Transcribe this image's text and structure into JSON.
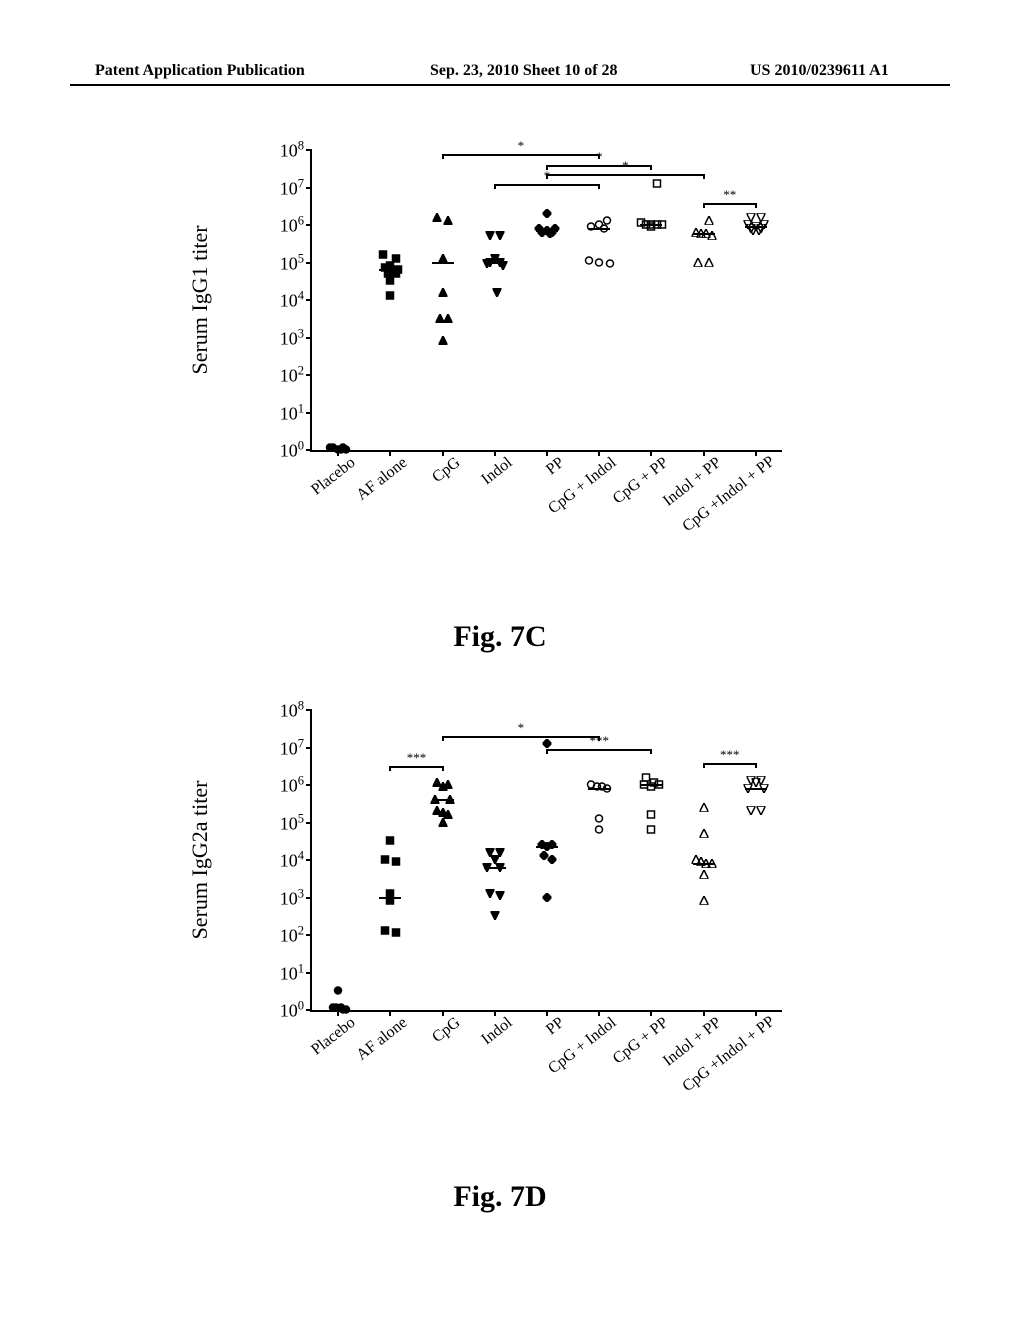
{
  "header": {
    "left": "Patent Application Publication",
    "center": "Sep. 23, 2010  Sheet 10 of 28",
    "right": "US 2010/0239611 A1"
  },
  "categories": [
    "Placebo",
    "AF alone",
    "CpG",
    "Indol",
    "PP",
    "CpG + Indol",
    "CpG + PP",
    "Indol + PP",
    "CpG +Indol + PP"
  ],
  "y_ticks": [
    0,
    1,
    2,
    3,
    4,
    5,
    6,
    7,
    8
  ],
  "marker_styles": [
    "filled-circle",
    "filled-square",
    "filled-triangle-up",
    "filled-triangle-down",
    "filled-diamond",
    "open-circle",
    "open-square",
    "open-triangle-up",
    "open-triangle-down"
  ],
  "colors": {
    "axis": "#000000",
    "bg": "#ffffff",
    "marker": "#000000"
  },
  "chart7C": {
    "caption": "Fig. 7C",
    "ylabel": "Serum IgG1 titer",
    "sig": [
      {
        "from": 2,
        "to": 5,
        "y": 7.9,
        "label": "*"
      },
      {
        "from": 4,
        "to": 6,
        "y": 7.6,
        "label": "*"
      },
      {
        "from": 4,
        "to": 7,
        "y": 7.35,
        "label": "*"
      },
      {
        "from": 3,
        "to": 5,
        "y": 7.1,
        "label": "*"
      },
      {
        "from": 7,
        "to": 8,
        "y": 6.6,
        "label": "**"
      }
    ],
    "data": [
      {
        "g": 0,
        "pts": [
          [
            0,
            0
          ],
          [
            0.1,
            0.05
          ],
          [
            -0.1,
            0.05
          ],
          [
            0.05,
            0
          ],
          [
            -0.15,
            0.05
          ],
          [
            0.15,
            0
          ]
        ]
      },
      {
        "g": 1,
        "pts": [
          [
            -0.15,
            5.2
          ],
          [
            0.1,
            5.1
          ],
          [
            0,
            4.9
          ],
          [
            -0.1,
            4.85
          ],
          [
            0.15,
            4.8
          ],
          [
            -0.05,
            4.7
          ],
          [
            0.1,
            4.7
          ],
          [
            0,
            4.5
          ],
          [
            0,
            4.1
          ]
        ],
        "median": 4.8
      },
      {
        "g": 2,
        "pts": [
          [
            -0.1,
            6.2
          ],
          [
            0.1,
            6.1
          ],
          [
            0,
            5.1
          ],
          [
            0,
            4.2
          ],
          [
            -0.05,
            3.5
          ],
          [
            0.1,
            3.5
          ],
          [
            0,
            2.9
          ]
        ],
        "median": 5.0
      },
      {
        "g": 3,
        "pts": [
          [
            -0.1,
            5.7
          ],
          [
            0.1,
            5.7
          ],
          [
            0,
            5.1
          ],
          [
            -0.1,
            5.0
          ],
          [
            0.1,
            5.0
          ],
          [
            -0.15,
            4.95
          ],
          [
            0.15,
            4.9
          ],
          [
            0.05,
            4.2
          ]
        ],
        "median": 5.0
      },
      {
        "g": 4,
        "pts": [
          [
            0,
            6.3
          ],
          [
            -0.15,
            5.9
          ],
          [
            0.15,
            5.9
          ],
          [
            0,
            5.85
          ],
          [
            -0.1,
            5.8
          ],
          [
            0.1,
            5.8
          ],
          [
            0.05,
            5.75
          ]
        ],
        "median": 5.85
      },
      {
        "g": 5,
        "pts": [
          [
            0.15,
            6.1
          ],
          [
            0,
            6.0
          ],
          [
            -0.15,
            5.95
          ],
          [
            0.1,
            5.9
          ],
          [
            -0.2,
            5.05
          ],
          [
            0,
            5.0
          ],
          [
            0.2,
            4.95
          ]
        ],
        "median": 5.9
      },
      {
        "g": 6,
        "pts": [
          [
            0.1,
            7.1
          ],
          [
            -0.2,
            6.05
          ],
          [
            -0.1,
            6.0
          ],
          [
            0,
            6.0
          ],
          [
            0.1,
            6.0
          ],
          [
            0.2,
            6.0
          ],
          [
            0,
            5.95
          ]
        ],
        "median": 6.0
      },
      {
        "g": 7,
        "pts": [
          [
            0.1,
            6.1
          ],
          [
            -0.15,
            5.8
          ],
          [
            -0.05,
            5.75
          ],
          [
            0.05,
            5.75
          ],
          [
            0.15,
            5.7
          ],
          [
            -0.1,
            5.0
          ],
          [
            0.1,
            5.0
          ]
        ],
        "median": 5.75
      },
      {
        "g": 8,
        "pts": [
          [
            -0.1,
            6.2
          ],
          [
            0.1,
            6.2
          ],
          [
            -0.15,
            6.0
          ],
          [
            0.15,
            6.0
          ],
          [
            0,
            5.95
          ],
          [
            -0.1,
            5.9
          ],
          [
            0.1,
            5.9
          ],
          [
            -0.05,
            5.85
          ],
          [
            0.05,
            5.85
          ]
        ],
        "median": 5.95
      }
    ]
  },
  "chart7D": {
    "caption": "Fig. 7D",
    "ylabel": "Serum IgG2a titer",
    "sig": [
      {
        "from": 2,
        "to": 5,
        "y": 7.3,
        "label": "*"
      },
      {
        "from": 4,
        "to": 6,
        "y": 6.95,
        "label": "***"
      },
      {
        "from": 1,
        "to": 2,
        "y": 6.5,
        "label": "***"
      },
      {
        "from": 7,
        "to": 8,
        "y": 6.6,
        "label": "***"
      }
    ],
    "data": [
      {
        "g": 0,
        "pts": [
          [
            0,
            0.5
          ],
          [
            0.05,
            0.05
          ],
          [
            -0.05,
            0.05
          ],
          [
            0.1,
            0
          ],
          [
            -0.1,
            0.05
          ],
          [
            0.15,
            0
          ]
        ]
      },
      {
        "g": 1,
        "pts": [
          [
            0,
            4.5
          ],
          [
            -0.1,
            4.0
          ],
          [
            0.1,
            3.95
          ],
          [
            0,
            3.1
          ],
          [
            0,
            2.9
          ],
          [
            -0.1,
            2.1
          ],
          [
            0.1,
            2.05
          ]
        ],
        "median": 3.0
      },
      {
        "g": 2,
        "pts": [
          [
            -0.1,
            6.05
          ],
          [
            0.1,
            6.0
          ],
          [
            0,
            5.95
          ],
          [
            -0.15,
            5.6
          ],
          [
            0.15,
            5.6
          ],
          [
            -0.1,
            5.3
          ],
          [
            0,
            5.25
          ],
          [
            0.1,
            5.2
          ],
          [
            0,
            5.0
          ]
        ],
        "median": 5.6
      },
      {
        "g": 3,
        "pts": [
          [
            -0.1,
            4.2
          ],
          [
            0.1,
            4.2
          ],
          [
            0,
            4.0
          ],
          [
            -0.15,
            3.8
          ],
          [
            0.1,
            3.8
          ],
          [
            -0.1,
            3.1
          ],
          [
            0.1,
            3.05
          ],
          [
            0,
            2.5
          ]
        ],
        "median": 3.8
      },
      {
        "g": 4,
        "pts": [
          [
            0,
            7.1
          ],
          [
            -0.1,
            4.4
          ],
          [
            0.1,
            4.4
          ],
          [
            0,
            4.35
          ],
          [
            -0.05,
            4.1
          ],
          [
            0.1,
            4.0
          ],
          [
            0,
            3.0
          ]
        ],
        "median": 4.35
      },
      {
        "g": 5,
        "pts": [
          [
            -0.15,
            6.0
          ],
          [
            -0.05,
            5.95
          ],
          [
            0.05,
            5.95
          ],
          [
            0.15,
            5.9
          ],
          [
            0,
            5.1
          ],
          [
            0,
            4.8
          ]
        ],
        "median": 5.9
      },
      {
        "g": 6,
        "pts": [
          [
            -0.1,
            6.2
          ],
          [
            0.05,
            6.05
          ],
          [
            -0.15,
            6.0
          ],
          [
            0.15,
            6.0
          ],
          [
            0,
            5.95
          ],
          [
            0,
            5.2
          ],
          [
            0,
            4.8
          ]
        ],
        "median": 6.0
      },
      {
        "g": 7,
        "pts": [
          [
            0,
            5.4
          ],
          [
            0,
            4.7
          ],
          [
            -0.15,
            4.0
          ],
          [
            -0.05,
            3.95
          ],
          [
            0.05,
            3.9
          ],
          [
            0.15,
            3.9
          ],
          [
            0,
            3.6
          ],
          [
            0,
            2.9
          ]
        ],
        "median": 3.9
      },
      {
        "g": 8,
        "pts": [
          [
            -0.1,
            6.1
          ],
          [
            0.1,
            6.1
          ],
          [
            0,
            6.05
          ],
          [
            -0.15,
            5.9
          ],
          [
            0.15,
            5.9
          ],
          [
            -0.1,
            5.3
          ],
          [
            0.1,
            5.3
          ]
        ],
        "median": 5.9
      }
    ]
  }
}
